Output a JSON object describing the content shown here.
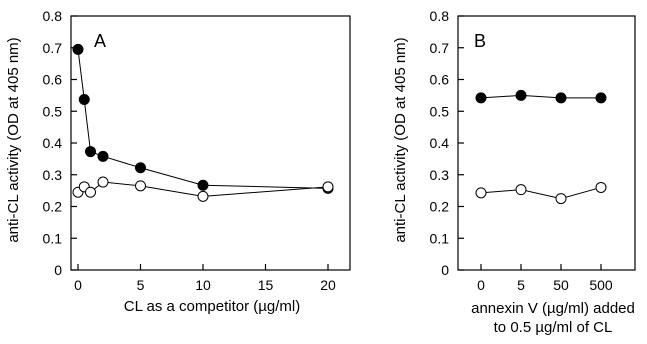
{
  "chart_data": [
    {
      "type": "line",
      "panel_label": "A",
      "xlabel": "CL as a competitor (µg/ml)",
      "ylabel": "anti-CL activity (OD at 405 nm)",
      "xlim": [
        0,
        21
      ],
      "ylim": [
        0,
        0.8
      ],
      "xticks": [
        0,
        5,
        10,
        15,
        20
      ],
      "yticks": [
        "0",
        "0.1",
        "0.2",
        "0.3",
        "0.4",
        "0.5",
        "0.6",
        "0.7",
        "0.8"
      ],
      "grid": false,
      "series": [
        {
          "marker": "filled-circle",
          "x": [
            0,
            0.5,
            1,
            2,
            5,
            10,
            20
          ],
          "y": [
            0.695,
            0.537,
            0.373,
            0.358,
            0.322,
            0.267,
            0.257
          ]
        },
        {
          "marker": "open-circle",
          "x": [
            0,
            0.5,
            1,
            2,
            5,
            10,
            20
          ],
          "y": [
            0.245,
            0.262,
            0.245,
            0.277,
            0.265,
            0.232,
            0.262
          ]
        }
      ]
    },
    {
      "type": "line",
      "panel_label": "B",
      "xlabel_lines": [
        "annexin V (µg/ml) added",
        "to 0.5 µg/ml of CL"
      ],
      "ylabel": "anti-CL activity (OD at 405 nm)",
      "categories": [
        "0",
        "5",
        "50",
        "500"
      ],
      "ylim": [
        0,
        0.8
      ],
      "yticks": [
        "0",
        "0.1",
        "0.2",
        "0.3",
        "0.4",
        "0.5",
        "0.6",
        "0.7",
        "0.8"
      ],
      "grid": false,
      "series": [
        {
          "marker": "filled-circle",
          "values": [
            0.542,
            0.55,
            0.542,
            0.542
          ]
        },
        {
          "marker": "open-circle",
          "values": [
            0.243,
            0.253,
            0.225,
            0.26
          ]
        }
      ]
    }
  ]
}
